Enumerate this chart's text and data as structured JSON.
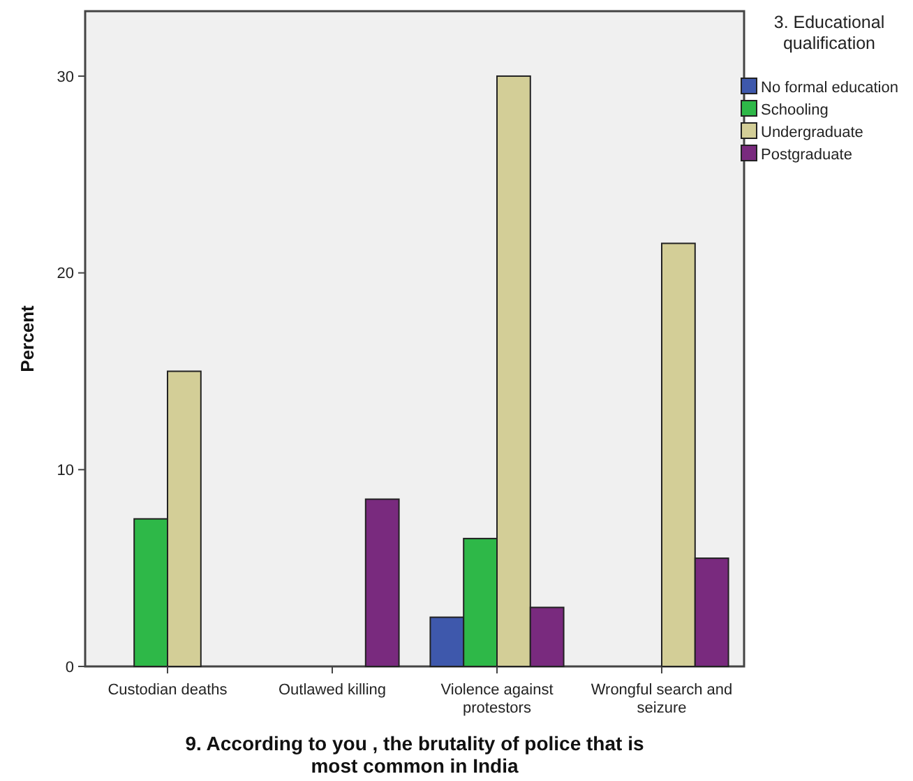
{
  "chart_data": {
    "type": "bar",
    "xlabel": "9. According to you , the brutality of police that is most common in India",
    "ylabel": "Percent",
    "legend_title": "3. Educational qualification",
    "legend": "top right",
    "categories": [
      "Custodian deaths",
      "Outlawed killing",
      "Violence against protestors",
      "Wrongful search and seizure"
    ],
    "series": [
      {
        "name": "No formal education",
        "color": "#3e58ac",
        "values": [
          0,
          0,
          2.5,
          0
        ]
      },
      {
        "name": "Schooling",
        "color": "#2eb848",
        "values": [
          7.5,
          0,
          6.5,
          0
        ]
      },
      {
        "name": "Undergraduate",
        "color": "#d3ce97",
        "values": [
          15,
          0,
          30,
          21.5
        ]
      },
      {
        "name": "Postgraduate",
        "color": "#792a7e",
        "values": [
          0,
          8.5,
          3,
          5.5
        ]
      }
    ],
    "ylim": [
      0,
      33.3
    ],
    "yticks": [
      0,
      10,
      20,
      30
    ],
    "grid": false
  }
}
